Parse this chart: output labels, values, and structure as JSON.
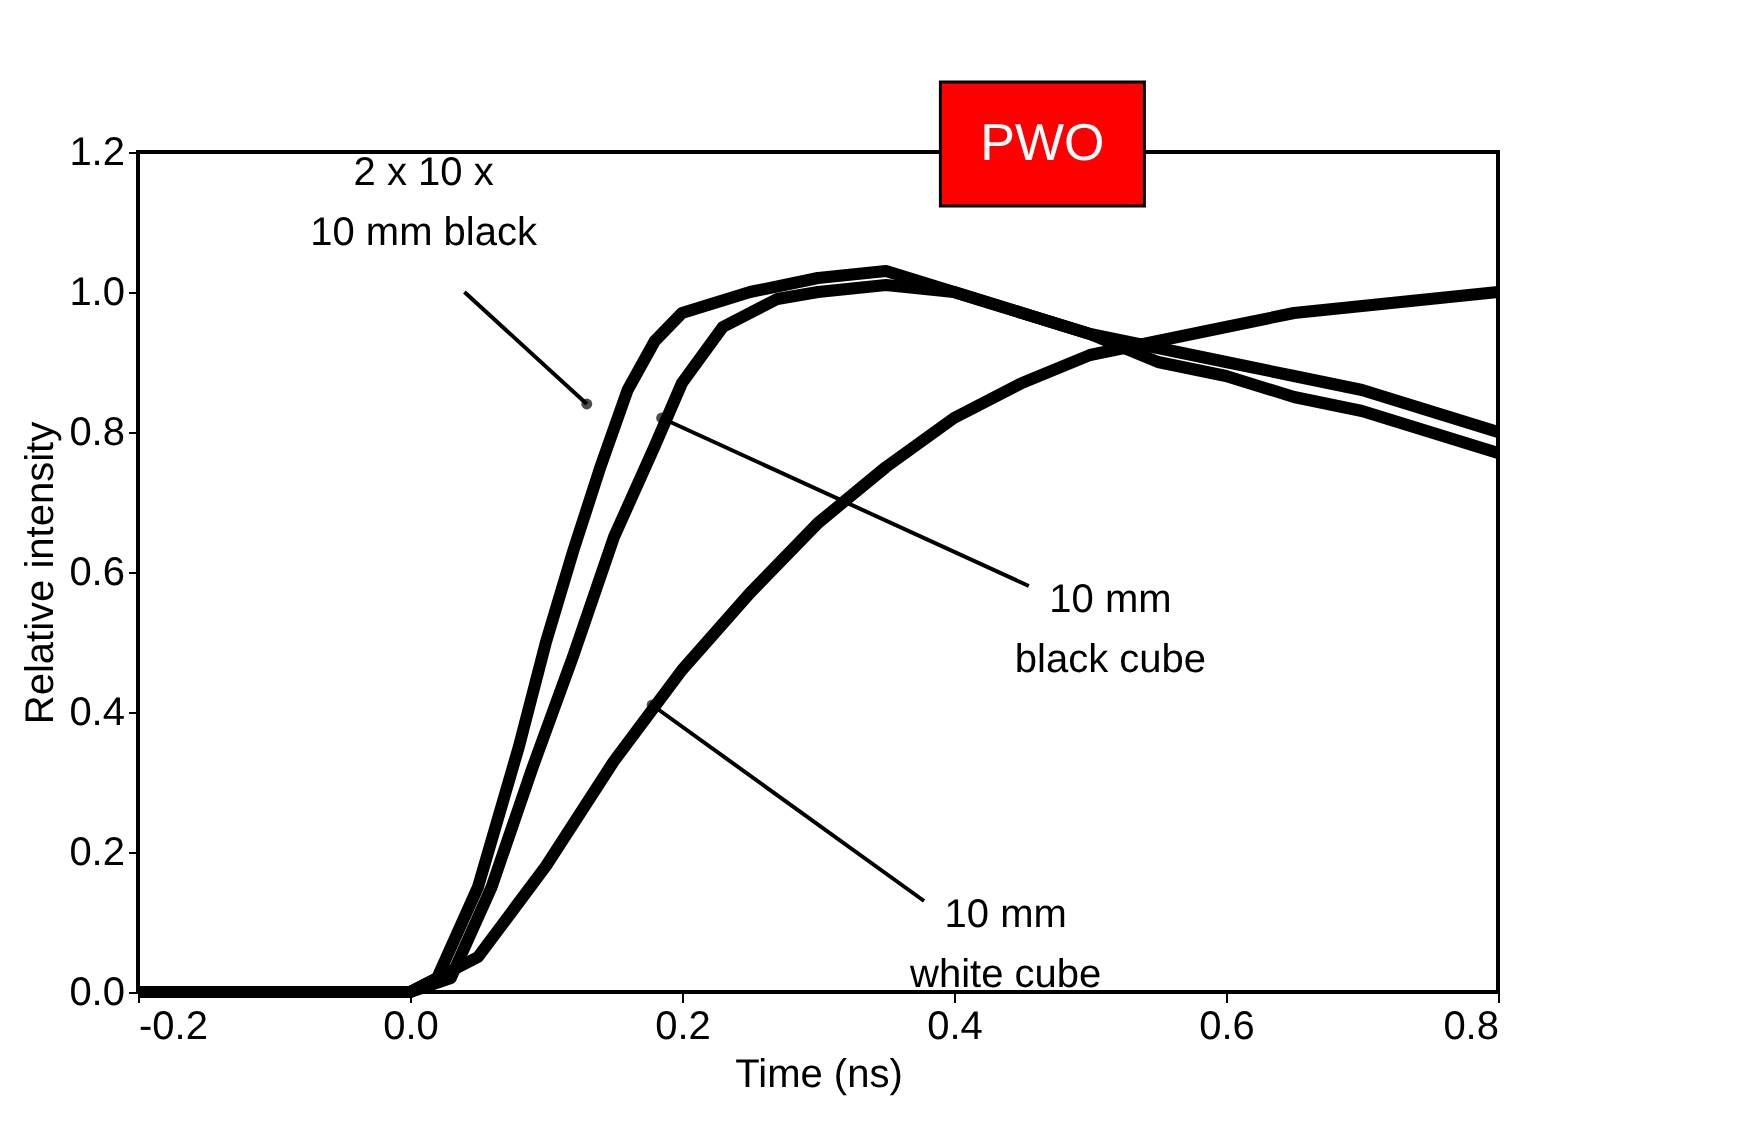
{
  "chart_data": {
    "type": "line",
    "title": "PWO",
    "xlabel": "Time (ns)",
    "ylabel": "Relative intensity",
    "xlim": [
      -0.2,
      0.8
    ],
    "xticks": [
      {
        "value": -0.2,
        "label": "-0.2"
      },
      {
        "value": 0,
        "label": "0.0"
      },
      {
        "value": 0.2,
        "label": "0.2"
      },
      {
        "value": 0.4,
        "label": "0.4"
      },
      {
        "value": 0.6,
        "label": "0.6"
      },
      {
        "value": 0.8,
        "label": "0.8"
      }
    ],
    "ylim": [
      0,
      1.2
    ],
    "yticks": [
      {
        "value": 0,
        "label": "0.0"
      },
      {
        "value": 0.2,
        "label": "0.2"
      },
      {
        "value": 0.4,
        "label": "0.4"
      },
      {
        "value": 0.6,
        "label": "0.6"
      },
      {
        "value": 0.8,
        "label": "0.8"
      },
      {
        "value": 1,
        "label": "1.0"
      },
      {
        "value": 1.2,
        "label": "1.2"
      }
    ],
    "grid": false,
    "marker": "none",
    "line_style": "solid",
    "series": [
      {
        "color": "#000000",
        "x": [
          -0.2,
          -0.1,
          0.0,
          0.02,
          0.05,
          0.08,
          0.1,
          0.12,
          0.14,
          0.16,
          0.18,
          0.2,
          0.25,
          0.3,
          0.35,
          0.4,
          0.45,
          0.5,
          0.55,
          0.6,
          0.65,
          0.7,
          0.75,
          0.8
        ],
        "values": [
          0.0,
          0.0,
          0.0,
          0.02,
          0.15,
          0.35,
          0.5,
          0.63,
          0.75,
          0.86,
          0.93,
          0.97,
          1.0,
          1.02,
          1.03,
          1.0,
          0.97,
          0.94,
          0.9,
          0.88,
          0.85,
          0.83,
          0.8,
          0.77
        ]
      },
      {
        "color": "#000000",
        "x": [
          -0.2,
          -0.1,
          0.0,
          0.03,
          0.06,
          0.09,
          0.12,
          0.15,
          0.18,
          0.2,
          0.23,
          0.27,
          0.3,
          0.35,
          0.4,
          0.45,
          0.5,
          0.55,
          0.6,
          0.65,
          0.7,
          0.75,
          0.8
        ],
        "values": [
          0.0,
          0.0,
          0.0,
          0.02,
          0.15,
          0.32,
          0.48,
          0.65,
          0.78,
          0.87,
          0.95,
          0.99,
          1.0,
          1.01,
          1.0,
          0.97,
          0.94,
          0.92,
          0.9,
          0.88,
          0.86,
          0.83,
          0.8
        ]
      },
      {
        "color": "#000000",
        "x": [
          -0.2,
          -0.1,
          0.0,
          0.05,
          0.1,
          0.15,
          0.2,
          0.25,
          0.3,
          0.35,
          0.4,
          0.45,
          0.5,
          0.55,
          0.6,
          0.65,
          0.7,
          0.75,
          0.8
        ],
        "values": [
          0.0,
          0.0,
          0.0,
          0.05,
          0.18,
          0.33,
          0.46,
          0.57,
          0.67,
          0.75,
          0.82,
          0.87,
          0.91,
          0.93,
          0.95,
          0.97,
          0.98,
          0.99,
          1.0
        ]
      }
    ],
    "annotations": [
      {
        "text": "2 x 10 x\n10 mm black",
        "x": 0.13,
        "y": 0.84
      },
      {
        "text": "10 mm\nblack cube",
        "x": 0.185,
        "y": 0.82
      },
      {
        "text": "10 mm\nwhite cube",
        "x": 0.178,
        "y": 0.41
      }
    ]
  }
}
